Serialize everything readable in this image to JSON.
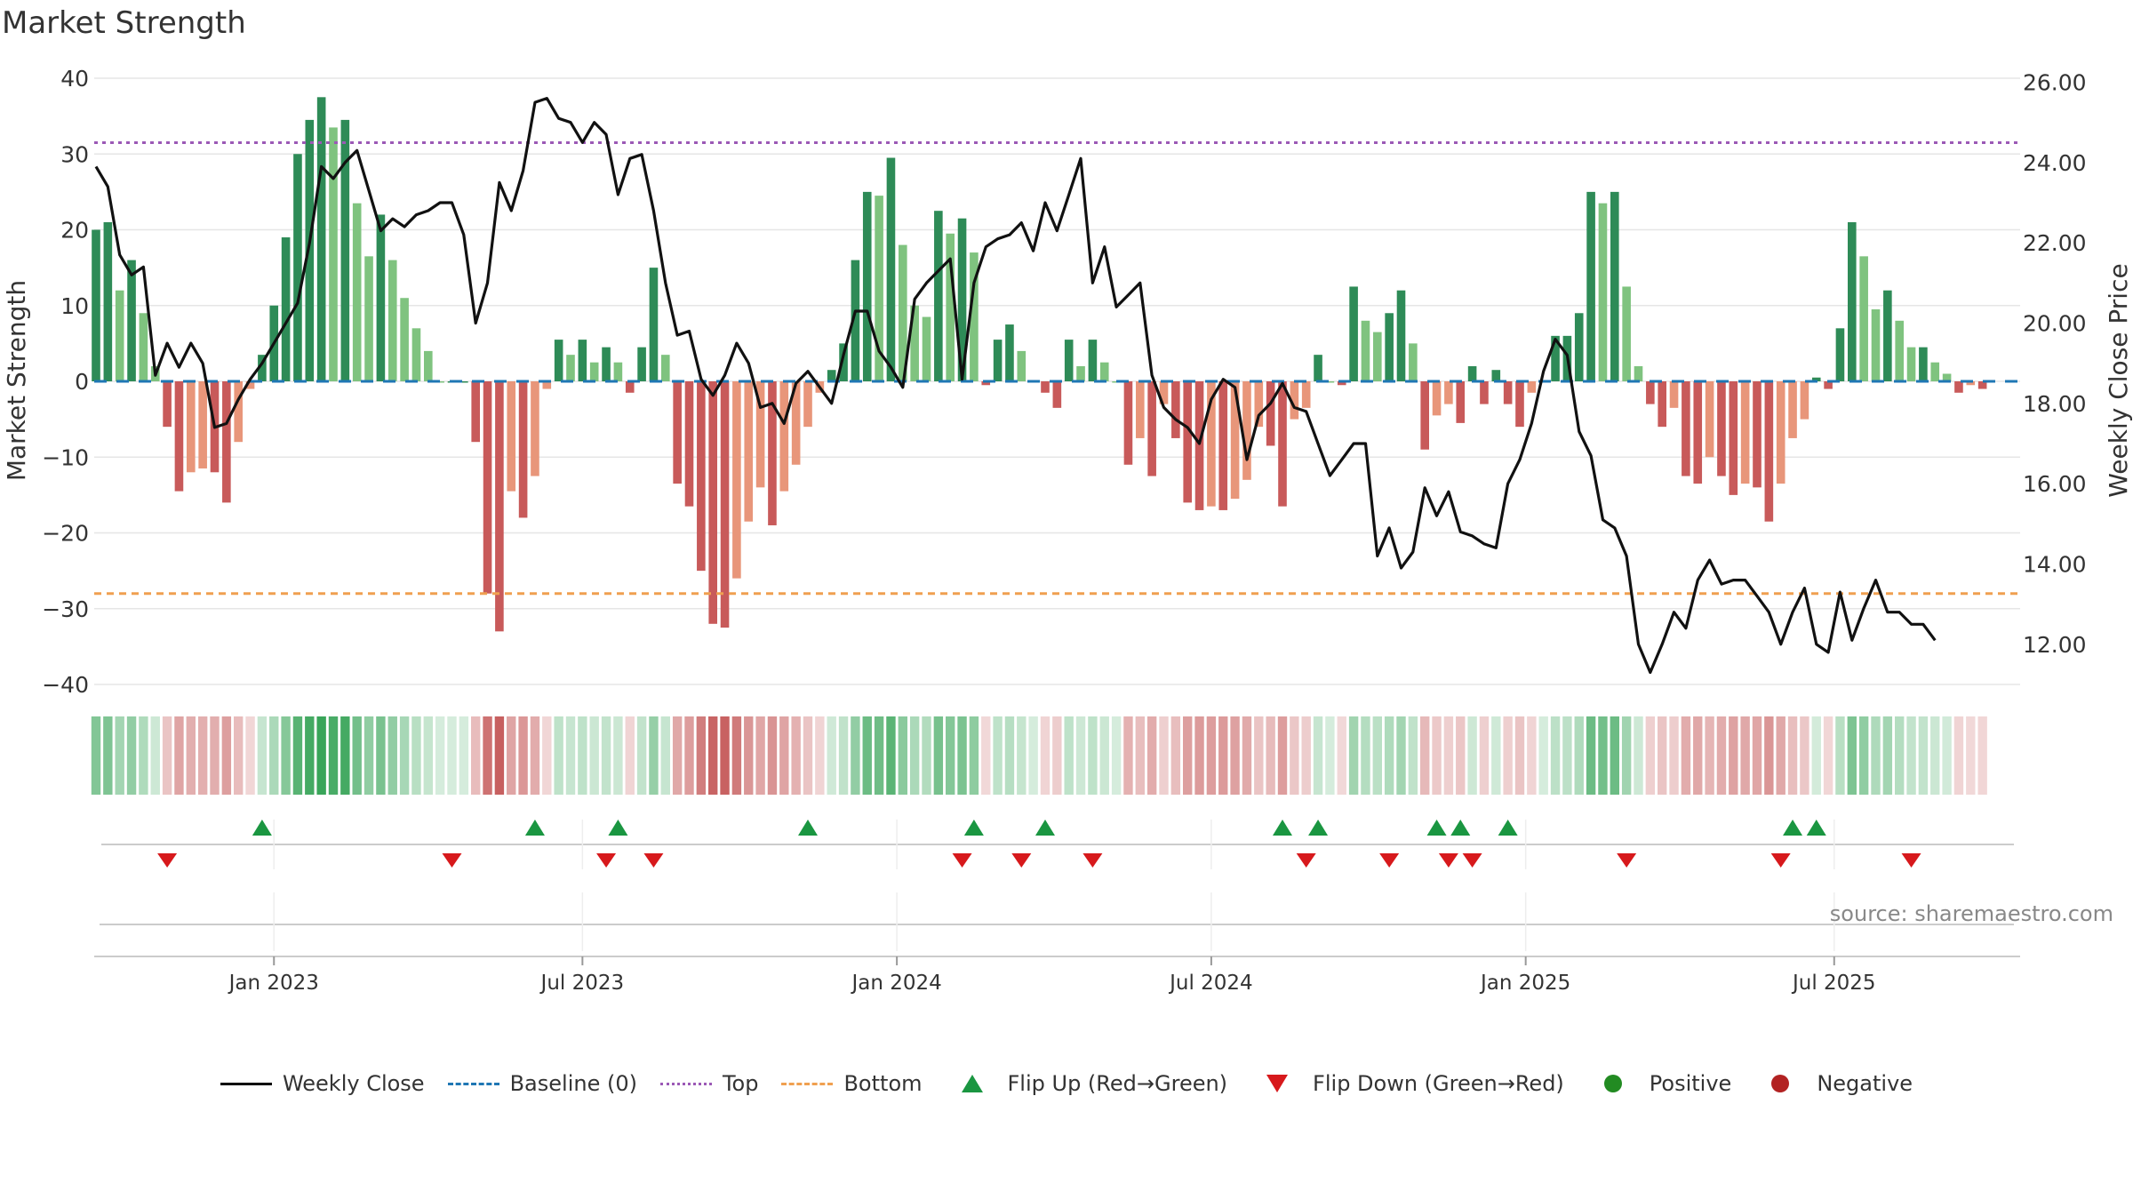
{
  "chart_data": {
    "type": "bar",
    "title": "Market Strength",
    "source": "source: sharemaestro.com",
    "left_axis": {
      "label": "Market Strength",
      "ylim": [
        -40,
        40
      ],
      "ticks": [
        {
          "v": 40,
          "label": "40"
        },
        {
          "v": 30,
          "label": "30"
        },
        {
          "v": 20,
          "label": "20"
        },
        {
          "v": 10,
          "label": "10"
        },
        {
          "v": 0,
          "label": "0"
        },
        {
          "v": -10,
          "label": "−10"
        },
        {
          "v": -20,
          "label": "−20"
        },
        {
          "v": -30,
          "label": "−30"
        },
        {
          "v": -40,
          "label": "−40"
        }
      ]
    },
    "right_axis": {
      "label": "Weekly Close Price",
      "ylim": [
        11.0,
        26.1
      ],
      "ticks": [
        {
          "v": 26,
          "label": "26.00"
        },
        {
          "v": 24,
          "label": "24.00"
        },
        {
          "v": 22,
          "label": "22.00"
        },
        {
          "v": 20,
          "label": "20.00"
        },
        {
          "v": 18,
          "label": "18.00"
        },
        {
          "v": 16,
          "label": "16.00"
        },
        {
          "v": 14,
          "label": "14.00"
        },
        {
          "v": 12,
          "label": "12.00"
        }
      ]
    },
    "x_ticks": [
      {
        "week": 15,
        "label": "Jan 2023"
      },
      {
        "week": 41,
        "label": "Jul 2023"
      },
      {
        "week": 67.5,
        "label": "Jan 2024"
      },
      {
        "week": 94,
        "label": "Jul 2024"
      },
      {
        "week": 120.5,
        "label": "Jan 2025"
      },
      {
        "week": 146.5,
        "label": "Jul 2025"
      }
    ],
    "top_level": 31.5,
    "bottom_level": -28,
    "series": [
      {
        "name": "Market Strength",
        "values": [
          20,
          21,
          12,
          16,
          9,
          2,
          -6,
          -14.5,
          -12,
          -11.5,
          -12,
          -16,
          -8,
          -1,
          3.5,
          10,
          19,
          30,
          34.5,
          37.5,
          33.5,
          34.5,
          23.5,
          16.5,
          22,
          16,
          11,
          7,
          4,
          0,
          0,
          0,
          -8,
          -28,
          -33,
          -14.5,
          -18,
          -12.5,
          -1,
          5.5,
          3.5,
          5.5,
          2.5,
          4.5,
          2.5,
          -1.5,
          4.5,
          15,
          3.5,
          -13.5,
          -16.5,
          -25,
          -32,
          -32.5,
          -26,
          -18.5,
          -14,
          -19,
          -14.5,
          -11,
          -6,
          -1.5,
          1.5,
          5,
          16,
          25,
          24.5,
          29.5,
          18,
          10,
          8.5,
          22.5,
          19.5,
          21.5,
          17,
          -0.5,
          5.5,
          7.5,
          4,
          0,
          -1.5,
          -3.5,
          5.5,
          2,
          5.5,
          2.5,
          0,
          -11,
          -7.5,
          -12.5,
          -3,
          -7.5,
          -16,
          -17,
          -16.5,
          -17,
          -15.5,
          -13,
          -6,
          -8.5,
          -16.5,
          -5,
          -3.5,
          3.5,
          0,
          -0.5,
          12.5,
          8,
          6.5,
          9,
          12,
          5,
          -9,
          -4.5,
          -3,
          -5.5,
          2,
          -3,
          1.5,
          -3,
          -6,
          -1.5,
          0,
          6,
          6,
          9,
          25,
          23.5,
          25,
          12.5,
          2,
          -3,
          -6,
          -3.5,
          -12.5,
          -13.5,
          -10,
          -12.5,
          -15,
          -13.5,
          -14,
          -18.5,
          -13.5,
          -7.5,
          -5,
          0.5,
          -1,
          7,
          21,
          16.5,
          9.5,
          12,
          8,
          4.5,
          4.5,
          2.5,
          1,
          -1.5,
          -0.5,
          -1
        ]
      },
      {
        "name": "Weekly Close",
        "values": [
          23.9,
          23.4,
          21.7,
          21.2,
          21.4,
          18.7,
          19.5,
          18.9,
          19.5,
          19.0,
          17.4,
          17.5,
          18.1,
          18.6,
          19.0,
          19.5,
          20.0,
          20.5,
          22.0,
          23.9,
          23.6,
          24.0,
          24.3,
          23.3,
          22.3,
          22.6,
          22.4,
          22.7,
          22.8,
          23.0,
          23.0,
          22.2,
          20.0,
          21.0,
          23.5,
          22.8,
          23.8,
          25.5,
          25.6,
          25.1,
          25.0,
          24.5,
          25.0,
          24.7,
          23.2,
          24.1,
          24.2,
          22.8,
          21.0,
          19.7,
          19.8,
          18.6,
          18.2,
          18.7,
          19.5,
          19.0,
          17.9,
          18.0,
          17.5,
          18.5,
          18.8,
          18.4,
          18.0,
          19.2,
          20.3,
          20.3,
          19.3,
          18.9,
          18.4,
          20.6,
          21.0,
          21.3,
          21.6,
          18.6,
          21.0,
          21.9,
          22.1,
          22.2,
          22.5,
          21.8,
          23.0,
          22.3,
          23.2,
          24.1,
          21.0,
          21.9,
          20.4,
          20.7,
          21.0,
          18.7,
          17.9,
          17.6,
          17.4,
          17.0,
          18.1,
          18.6,
          18.4,
          16.6,
          17.7,
          18.0,
          18.5,
          17.9,
          17.8,
          17.0,
          16.2,
          16.6,
          17.0,
          17.0,
          14.2,
          14.9,
          13.9,
          14.3,
          15.9,
          15.2,
          15.8,
          14.8,
          14.7,
          14.5,
          14.4,
          16.0,
          16.6,
          17.5,
          18.8,
          19.6,
          19.2,
          17.3,
          16.7,
          15.1,
          14.9,
          14.2,
          12.0,
          11.3,
          12.0,
          12.8,
          12.4,
          13.6,
          14.1,
          13.5,
          13.6,
          13.6,
          13.2,
          12.8,
          12.0,
          12.8,
          13.4,
          12.0,
          11.8,
          13.3,
          12.1,
          12.9,
          13.6,
          12.8,
          12.8,
          12.5,
          12.5,
          12.1
        ]
      }
    ],
    "flip_up_weeks": [
      14,
      37,
      44,
      60,
      74,
      80,
      100,
      103,
      113,
      115,
      119,
      143,
      145
    ],
    "flip_down_weeks": [
      6,
      30,
      43,
      47,
      73,
      78,
      84,
      102,
      109,
      114,
      116,
      129,
      142,
      153
    ]
  },
  "legend": [
    {
      "key": "close",
      "label": "Weekly Close"
    },
    {
      "key": "baseline",
      "label": "Baseline (0)"
    },
    {
      "key": "top",
      "label": "Top"
    },
    {
      "key": "bottom",
      "label": "Bottom"
    },
    {
      "key": "flip_up",
      "label": "Flip Up (Red→Green)"
    },
    {
      "key": "flip_down",
      "label": "Flip Down (Green→Red)"
    },
    {
      "key": "positive",
      "label": "Positive"
    },
    {
      "key": "negative",
      "label": "Negative"
    }
  ],
  "colors": {
    "pos_dark": "#2e8b57",
    "pos_light": "#7fc37f",
    "neg_dark": "#c85a5a",
    "neg_light": "#e8967a",
    "close_line": "#111111",
    "baseline": "#1f77b4",
    "top_line": "#9b59b6",
    "bottom_line": "#f0a050",
    "flip_up": "#1a9641",
    "flip_down": "#d7191c",
    "positive_dot": "#228b22",
    "negative_dot": "#b22222",
    "grid": "#e6e6e6"
  }
}
